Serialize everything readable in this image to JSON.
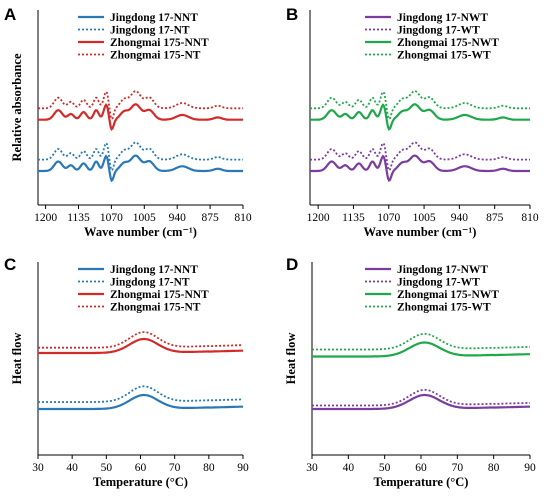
{
  "chart_data": [
    {
      "panel": "A",
      "type": "line",
      "xlabel": "Wave number (cm⁻¹)",
      "ylabel": "Relative absorbance",
      "x_ticks": [
        "1200",
        "1135",
        "1070",
        "1005",
        "940",
        "875",
        "810"
      ],
      "xlim": [
        1215,
        810
      ],
      "x_reversed": true,
      "y_ticks": false,
      "legend_position": "top-right",
      "series": [
        {
          "name": "Jingdong 17-NNT",
          "color": "#2a78b8",
          "dash": "solid",
          "kind": "ftir",
          "offset": 0.0
        },
        {
          "name": "Jingdong 17-NT",
          "color": "#2a78b8",
          "dash": "dotted",
          "kind": "ftir",
          "offset": 0.06
        },
        {
          "name": "Zhongmai 175-NNT",
          "color": "#d42a2a",
          "dash": "solid",
          "kind": "ftir",
          "offset": 0.27
        },
        {
          "name": "Zhongmai 175-NT",
          "color": "#d42a2a",
          "dash": "dotted",
          "kind": "ftir",
          "offset": 0.33
        }
      ]
    },
    {
      "panel": "B",
      "type": "line",
      "xlabel": "Wave number (cm⁻¹)",
      "ylabel": "",
      "x_ticks": [
        "1200",
        "1135",
        "1070",
        "1005",
        "940",
        "875",
        "810"
      ],
      "xlim": [
        1215,
        810
      ],
      "x_reversed": true,
      "y_ticks": false,
      "legend_position": "top-right",
      "series": [
        {
          "name": "Jingdong 17-NWT",
          "color": "#7a3c9e",
          "dash": "solid",
          "kind": "ftir",
          "offset": 0.0
        },
        {
          "name": "Jingdong 17-WT",
          "color": "#7a3c9e",
          "dash": "dotted",
          "kind": "ftir",
          "offset": 0.06
        },
        {
          "name": "Zhongmai 175-NWT",
          "color": "#1fa84a",
          "dash": "solid",
          "kind": "ftir",
          "offset": 0.27
        },
        {
          "name": "Zhongmai 175-WT",
          "color": "#1fa84a",
          "dash": "dotted",
          "kind": "ftir",
          "offset": 0.33
        }
      ]
    },
    {
      "panel": "C",
      "type": "line",
      "xlabel": "Temperature (°C)",
      "ylabel": "Heat flow",
      "x_ticks": [
        "30",
        "40",
        "50",
        "60",
        "70",
        "80",
        "90"
      ],
      "xlim": [
        30,
        90
      ],
      "x_reversed": false,
      "y_ticks": false,
      "legend_position": "top-right",
      "series": [
        {
          "name": "Jingdong 17-NNT",
          "color": "#2a78b8",
          "dash": "solid",
          "kind": "dsc",
          "offset": 0.0
        },
        {
          "name": "Jingdong 17-NT",
          "color": "#2a78b8",
          "dash": "dotted",
          "kind": "dsc",
          "offset": 0.04
        },
        {
          "name": "Zhongmai 175-NNT",
          "color": "#d42a2a",
          "dash": "solid",
          "kind": "dsc",
          "offset": 0.32
        },
        {
          "name": "Zhongmai 175-NT",
          "color": "#d42a2a",
          "dash": "dotted",
          "kind": "dsc",
          "offset": 0.35
        }
      ]
    },
    {
      "panel": "D",
      "type": "line",
      "xlabel": "Temperature (°C)",
      "ylabel": "Heat flow",
      "x_ticks": [
        "30",
        "40",
        "50",
        "60",
        "70",
        "80",
        "90"
      ],
      "xlim": [
        30,
        90
      ],
      "x_reversed": false,
      "y_ticks": false,
      "legend_position": "top-right",
      "series": [
        {
          "name": "Jingdong 17-NWT",
          "color": "#7a3c9e",
          "dash": "solid",
          "kind": "dsc",
          "offset": 0.0
        },
        {
          "name": "Jingdong 17-WT",
          "color": "#7a3c9e",
          "dash": "dotted",
          "kind": "dsc",
          "offset": 0.02
        },
        {
          "name": "Zhongmai 175-NWT",
          "color": "#1fa84a",
          "dash": "solid",
          "kind": "dsc",
          "offset": 0.3
        },
        {
          "name": "Zhongmai 175-WT",
          "color": "#1fa84a",
          "dash": "dotted",
          "kind": "dsc",
          "offset": 0.34
        }
      ]
    }
  ]
}
